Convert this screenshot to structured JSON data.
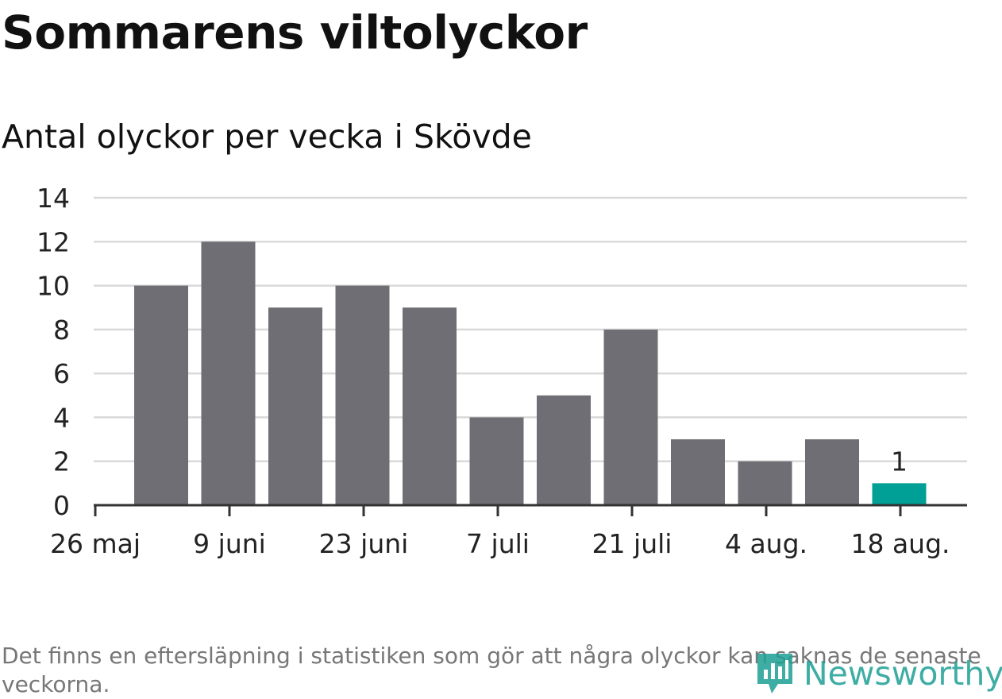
{
  "title": "Sommarens viltolyckor",
  "subtitle": "Antal olyckor per vecka i Skövde",
  "footnote": "Det finns en eftersläpning i statistiken som gör att några olyckor kan saknas de senaste veckorna.",
  "logo_text": "Newsworthy",
  "colors": {
    "bar": "#6f6e74",
    "highlight": "#00a096",
    "grid": "#d9d9d9",
    "axis": "#333333"
  },
  "chart_data": {
    "type": "bar",
    "title": "Sommarens viltolyckor",
    "subtitle": "Antal olyckor per vecka i Skövde",
    "xlabel": "",
    "ylabel": "",
    "ylim": [
      0,
      14
    ],
    "yticks": [
      "0",
      "2",
      "4",
      "6",
      "8",
      "10",
      "12",
      "14"
    ],
    "xticks": [
      "26 maj",
      "9 juni",
      "23 juni",
      "7 juli",
      "21 juli",
      "4 aug.",
      "18 aug."
    ],
    "grid": true,
    "values": [
      10,
      12,
      9,
      10,
      9,
      4,
      5,
      8,
      3,
      2,
      3,
      1
    ],
    "highlight_last": true,
    "data_labels": [
      {
        "index": 11,
        "text": "1"
      }
    ]
  }
}
